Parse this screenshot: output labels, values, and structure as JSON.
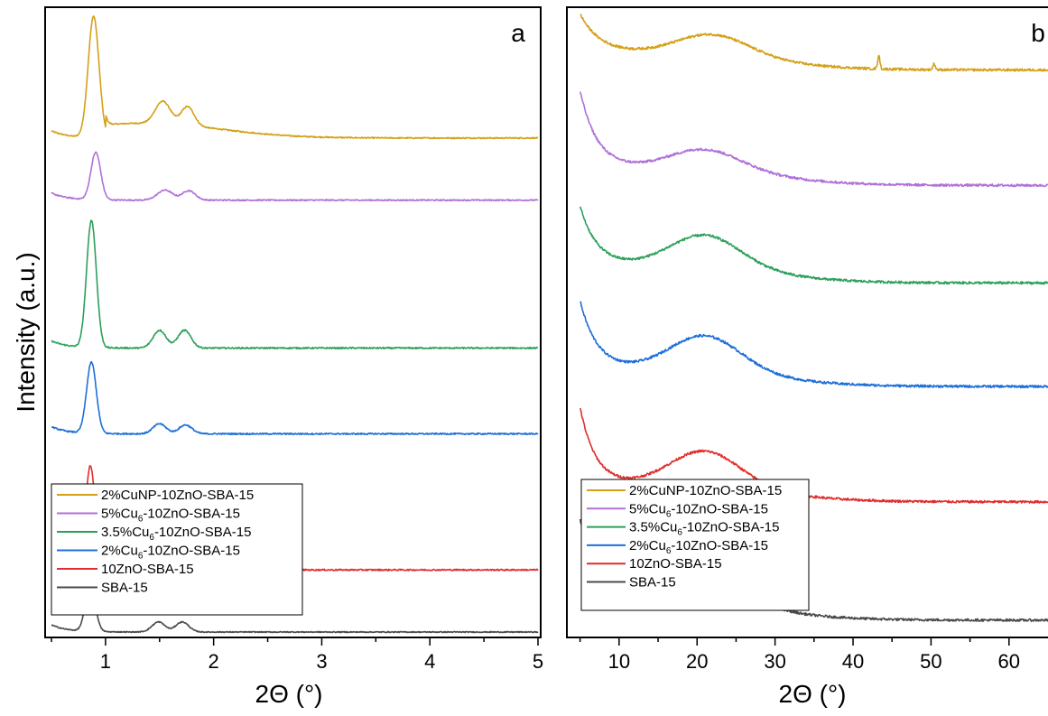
{
  "figure": {
    "ylabel": "Intensity (a.u.)"
  },
  "chart_data": [
    {
      "panel": "a",
      "type": "line",
      "xlabel": "2Θ (°)",
      "ylabel": "Intensity (a.u.)",
      "xlim": [
        0.5,
        5.0
      ],
      "xticks": [
        1,
        2,
        3,
        4,
        5
      ],
      "ylim": [
        0,
        10.5
      ],
      "y_ticks_shown": false,
      "grid": false,
      "legend_position": "bottom-left",
      "series": [
        {
          "name": "2%CuNP-10ZnO-SBA-15",
          "color": "#d4a017",
          "offset": 8.35,
          "baseline": 0.0,
          "peaks": [
            [
              0.89,
              2.05,
              0.05
            ],
            [
              1.53,
              0.38,
              0.07
            ],
            [
              1.76,
              0.32,
              0.06
            ]
          ],
          "shoulder": [
            1.35,
            0.25,
            0.7
          ],
          "noise": 0.01,
          "x": [
            0.5,
            0.89,
            1.0,
            1.53,
            1.65,
            1.76,
            2.0,
            3.0,
            5.0
          ],
          "y": [
            8.35,
            10.4,
            8.6,
            8.8,
            8.6,
            8.75,
            8.5,
            8.4,
            8.35
          ]
        },
        {
          "name": "5%Cu6-10ZnO-SBA-15",
          "color": "#b070d8",
          "offset": 7.3,
          "baseline": 0.0,
          "peaks": [
            [
              0.91,
              0.8,
              0.045
            ],
            [
              1.55,
              0.17,
              0.07
            ],
            [
              1.77,
              0.16,
              0.06
            ]
          ],
          "shoulder": null,
          "noise": 0.01,
          "x": [
            0.5,
            0.91,
            1.0,
            1.55,
            1.77,
            2.0,
            5.0
          ],
          "y": [
            7.3,
            8.1,
            7.35,
            7.47,
            7.46,
            7.32,
            7.3
          ]
        },
        {
          "name": "3.5%Cu6-10ZnO-SBA-15",
          "color": "#2ca05a",
          "offset": 4.8,
          "baseline": 0.0,
          "peaks": [
            [
              0.87,
              2.15,
              0.045
            ],
            [
              1.5,
              0.3,
              0.06
            ],
            [
              1.73,
              0.3,
              0.06
            ]
          ],
          "shoulder": null,
          "noise": 0.012,
          "x": [
            0.5,
            0.87,
            1.0,
            1.5,
            1.73,
            2.0,
            5.0
          ],
          "y": [
            4.95,
            7.0,
            4.85,
            5.1,
            5.1,
            4.82,
            4.8
          ]
        },
        {
          "name": "2%Cu6-10ZnO-SBA-15",
          "color": "#1e6fd9",
          "offset": 3.35,
          "baseline": 0.0,
          "peaks": [
            [
              0.87,
              1.2,
              0.045
            ],
            [
              1.5,
              0.17,
              0.06
            ],
            [
              1.74,
              0.15,
              0.06
            ]
          ],
          "shoulder": null,
          "noise": 0.012,
          "x": [
            0.5,
            0.87,
            1.0,
            1.5,
            1.74,
            2.0,
            5.0
          ],
          "y": [
            3.45,
            4.55,
            3.4,
            3.52,
            3.5,
            3.36,
            3.35
          ]
        },
        {
          "name": "10ZnO-SBA-15",
          "color": "#e02d2d",
          "offset": 1.05,
          "baseline": 0.0,
          "peaks": [
            [
              0.86,
              1.75,
              0.045
            ],
            [
              1.49,
              0.38,
              0.06
            ],
            [
              1.72,
              0.35,
              0.06
            ]
          ],
          "shoulder": null,
          "noise": 0.012,
          "x": [
            0.5,
            0.86,
            1.0,
            1.49,
            1.72,
            2.0,
            5.0
          ],
          "y": [
            1.25,
            2.8,
            1.15,
            1.43,
            1.4,
            1.1,
            1.05
          ]
        },
        {
          "name": "SBA-15",
          "color": "#4a4a4a",
          "offset": 0.0,
          "baseline": 0.0,
          "peaks": [
            [
              0.86,
              0.78,
              0.045
            ],
            [
              1.49,
              0.17,
              0.06
            ],
            [
              1.71,
              0.17,
              0.06
            ]
          ],
          "shoulder": null,
          "noise": 0.008,
          "x": [
            0.5,
            0.86,
            1.0,
            1.49,
            1.71,
            2.0,
            5.0
          ],
          "y": [
            0.1,
            0.78,
            0.05,
            0.17,
            0.17,
            0.02,
            0.0
          ]
        }
      ]
    },
    {
      "panel": "b",
      "type": "line",
      "xlabel": "2Θ (°)",
      "ylabel": "",
      "xlim": [
        4,
        65
      ],
      "xticks": [
        10,
        20,
        30,
        40,
        50,
        60
      ],
      "ylim": [
        0,
        10.5
      ],
      "y_ticks_shown": false,
      "grid": false,
      "legend_position": "bottom-left",
      "series": [
        {
          "name": "2%CuNP-10ZnO-SBA-15",
          "color": "#d4a017",
          "offset": 9.5,
          "decay": [
            0.65,
            2.5
          ],
          "hump": [
            22,
            0.35,
            4.5
          ],
          "noise": 0.02,
          "sharp_peaks": [
            [
              43.3,
              0.22,
              0.15
            ],
            [
              50.4,
              0.1,
              0.15
            ]
          ],
          "x": [
            5,
            10,
            22,
            30,
            43.3,
            50,
            65
          ],
          "y": [
            10.15,
            9.75,
            9.85,
            9.6,
            9.72,
            9.55,
            9.5
          ]
        },
        {
          "name": "5%Cu6-10ZnO-SBA-15",
          "color": "#b070d8",
          "offset": 7.55,
          "decay": [
            1.3,
            2.2
          ],
          "hump": [
            21,
            0.35,
            4.5
          ],
          "noise": 0.02,
          "sharp_peaks": [],
          "x": [
            5,
            10,
            21,
            30,
            65
          ],
          "y": [
            8.85,
            8.15,
            8.0,
            7.75,
            7.55
          ]
        },
        {
          "name": "3.5%Cu6-10ZnO-SBA-15",
          "color": "#2ca05a",
          "offset": 5.9,
          "decay": [
            1.0,
            2.2
          ],
          "hump": [
            21,
            0.55,
            4.5
          ],
          "noise": 0.02,
          "sharp_peaks": [],
          "x": [
            5,
            10,
            21,
            30,
            65
          ],
          "y": [
            6.9,
            6.4,
            6.45,
            6.1,
            5.9
          ]
        },
        {
          "name": "2%Cu6-10ZnO-SBA-15",
          "color": "#1e6fd9",
          "offset": 4.15,
          "decay": [
            1.15,
            2.2
          ],
          "hump": [
            21,
            0.6,
            4.5
          ],
          "noise": 0.02,
          "sharp_peaks": [],
          "x": [
            5,
            10,
            21,
            30,
            65
          ],
          "y": [
            5.3,
            4.75,
            4.75,
            4.4,
            4.15
          ]
        },
        {
          "name": "10ZnO-SBA-15",
          "color": "#e02d2d",
          "offset": 2.2,
          "decay": [
            1.3,
            2.0
          ],
          "hump": [
            21,
            0.6,
            4.5
          ],
          "noise": 0.02,
          "sharp_peaks": [],
          "x": [
            5,
            10,
            21,
            30,
            65
          ],
          "y": [
            3.5,
            2.85,
            2.8,
            2.45,
            2.2
          ]
        },
        {
          "name": "SBA-15",
          "color": "#4a4a4a",
          "offset": 0.2,
          "decay": [
            1.4,
            2.4
          ],
          "hump": [
            21,
            0.55,
            4.5
          ],
          "noise": 0.02,
          "sharp_peaks": [],
          "x": [
            5,
            10,
            21,
            30,
            65
          ],
          "y": [
            1.6,
            0.95,
            0.85,
            0.45,
            0.2
          ]
        }
      ]
    }
  ],
  "legend_items": [
    {
      "pre": "2%CuNP-10ZnO-SBA-15",
      "sub": "",
      "post": ""
    },
    {
      "pre": "5%Cu",
      "sub": "6",
      "post": "-10ZnO-SBA-15"
    },
    {
      "pre": "3.5%Cu",
      "sub": "6",
      "post": "-10ZnO-SBA-15"
    },
    {
      "pre": "2%Cu",
      "sub": "6",
      "post": "-10ZnO-SBA-15"
    },
    {
      "pre": "10ZnO-SBA-15",
      "sub": "",
      "post": ""
    },
    {
      "pre": "SBA-15",
      "sub": "",
      "post": ""
    }
  ]
}
